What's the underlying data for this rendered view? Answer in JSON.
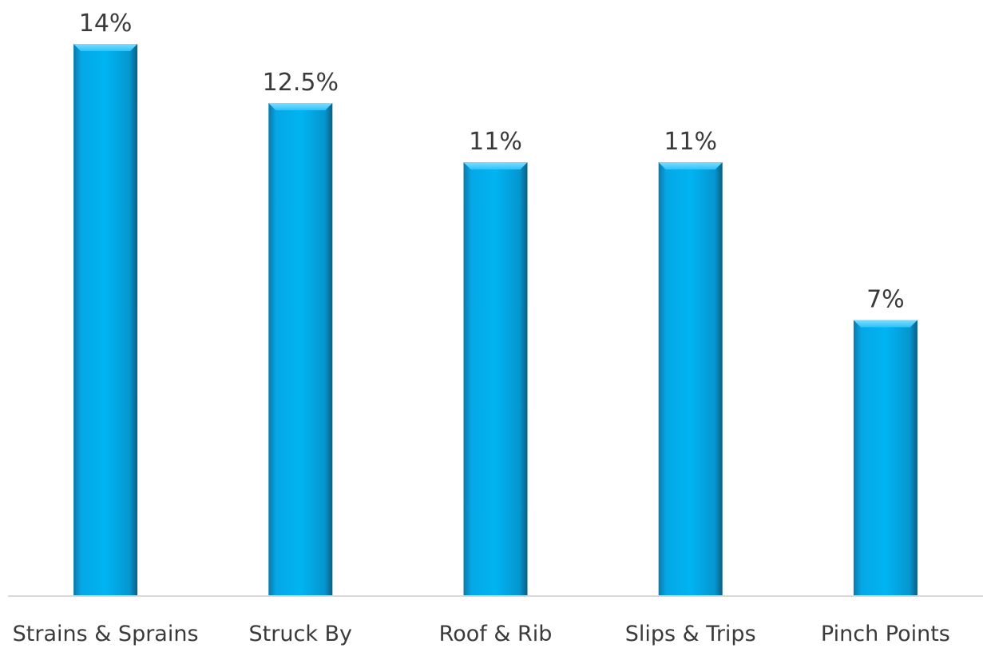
{
  "chart_data": {
    "type": "bar",
    "title": "",
    "xlabel": "",
    "ylabel": "",
    "categories": [
      "Strains & Sprains",
      "Struck By",
      "Roof & Rib",
      "Slips & Trips",
      "Pinch Points"
    ],
    "values": [
      14,
      12.5,
      11,
      11,
      7
    ],
    "data_labels": [
      "14%",
      "12.5%",
      "11%",
      "11%",
      "7%"
    ],
    "ylim": [
      0,
      14
    ],
    "grid": false,
    "legend": "none",
    "colors": {
      "bar": "#00b0f0",
      "bar_highlight": "#5fd3ff",
      "bar_shadow": "#0a6f99",
      "baseline": "#d9d9d9",
      "text": "#3a3a3a"
    }
  }
}
